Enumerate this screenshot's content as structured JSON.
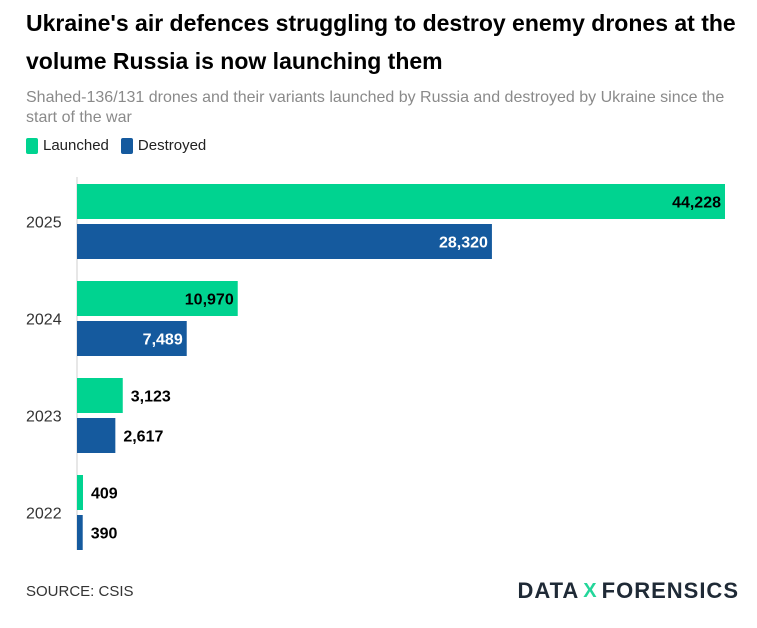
{
  "header": {
    "title": "Ukraine's air defences struggling to destroy enemy drones at the volume Russia is now launching them",
    "subtitle": "Shahed-136/131 drones and their variants launched by Russia and destroyed by Ukraine since the start of the war"
  },
  "colors": {
    "launched": "#00d390",
    "destroyed": "#155a9e"
  },
  "chart_data": {
    "type": "bar",
    "orientation": "horizontal",
    "title": "Ukraine's air defences struggling to destroy enemy drones at the volume Russia is now launching them",
    "categories": [
      "2025",
      "2024",
      "2023",
      "2022"
    ],
    "series": [
      {
        "name": "Launched",
        "values": [
          44228,
          10970,
          3123,
          409
        ],
        "labels": [
          "44,228",
          "10,970",
          "3,123",
          "409"
        ]
      },
      {
        "name": "Destroyed",
        "values": [
          28320,
          7489,
          2617,
          390
        ],
        "labels": [
          "28,320",
          "7,489",
          "2,617",
          "390"
        ]
      }
    ],
    "xlabel": "",
    "ylabel": "",
    "xlim": [
      0,
      44228
    ],
    "legend": "top-left",
    "grid": false
  },
  "footer": {
    "source": "SOURCE: CSIS",
    "logo_left": "DATA",
    "logo_x": "X",
    "logo_right": "FORENSICS"
  }
}
